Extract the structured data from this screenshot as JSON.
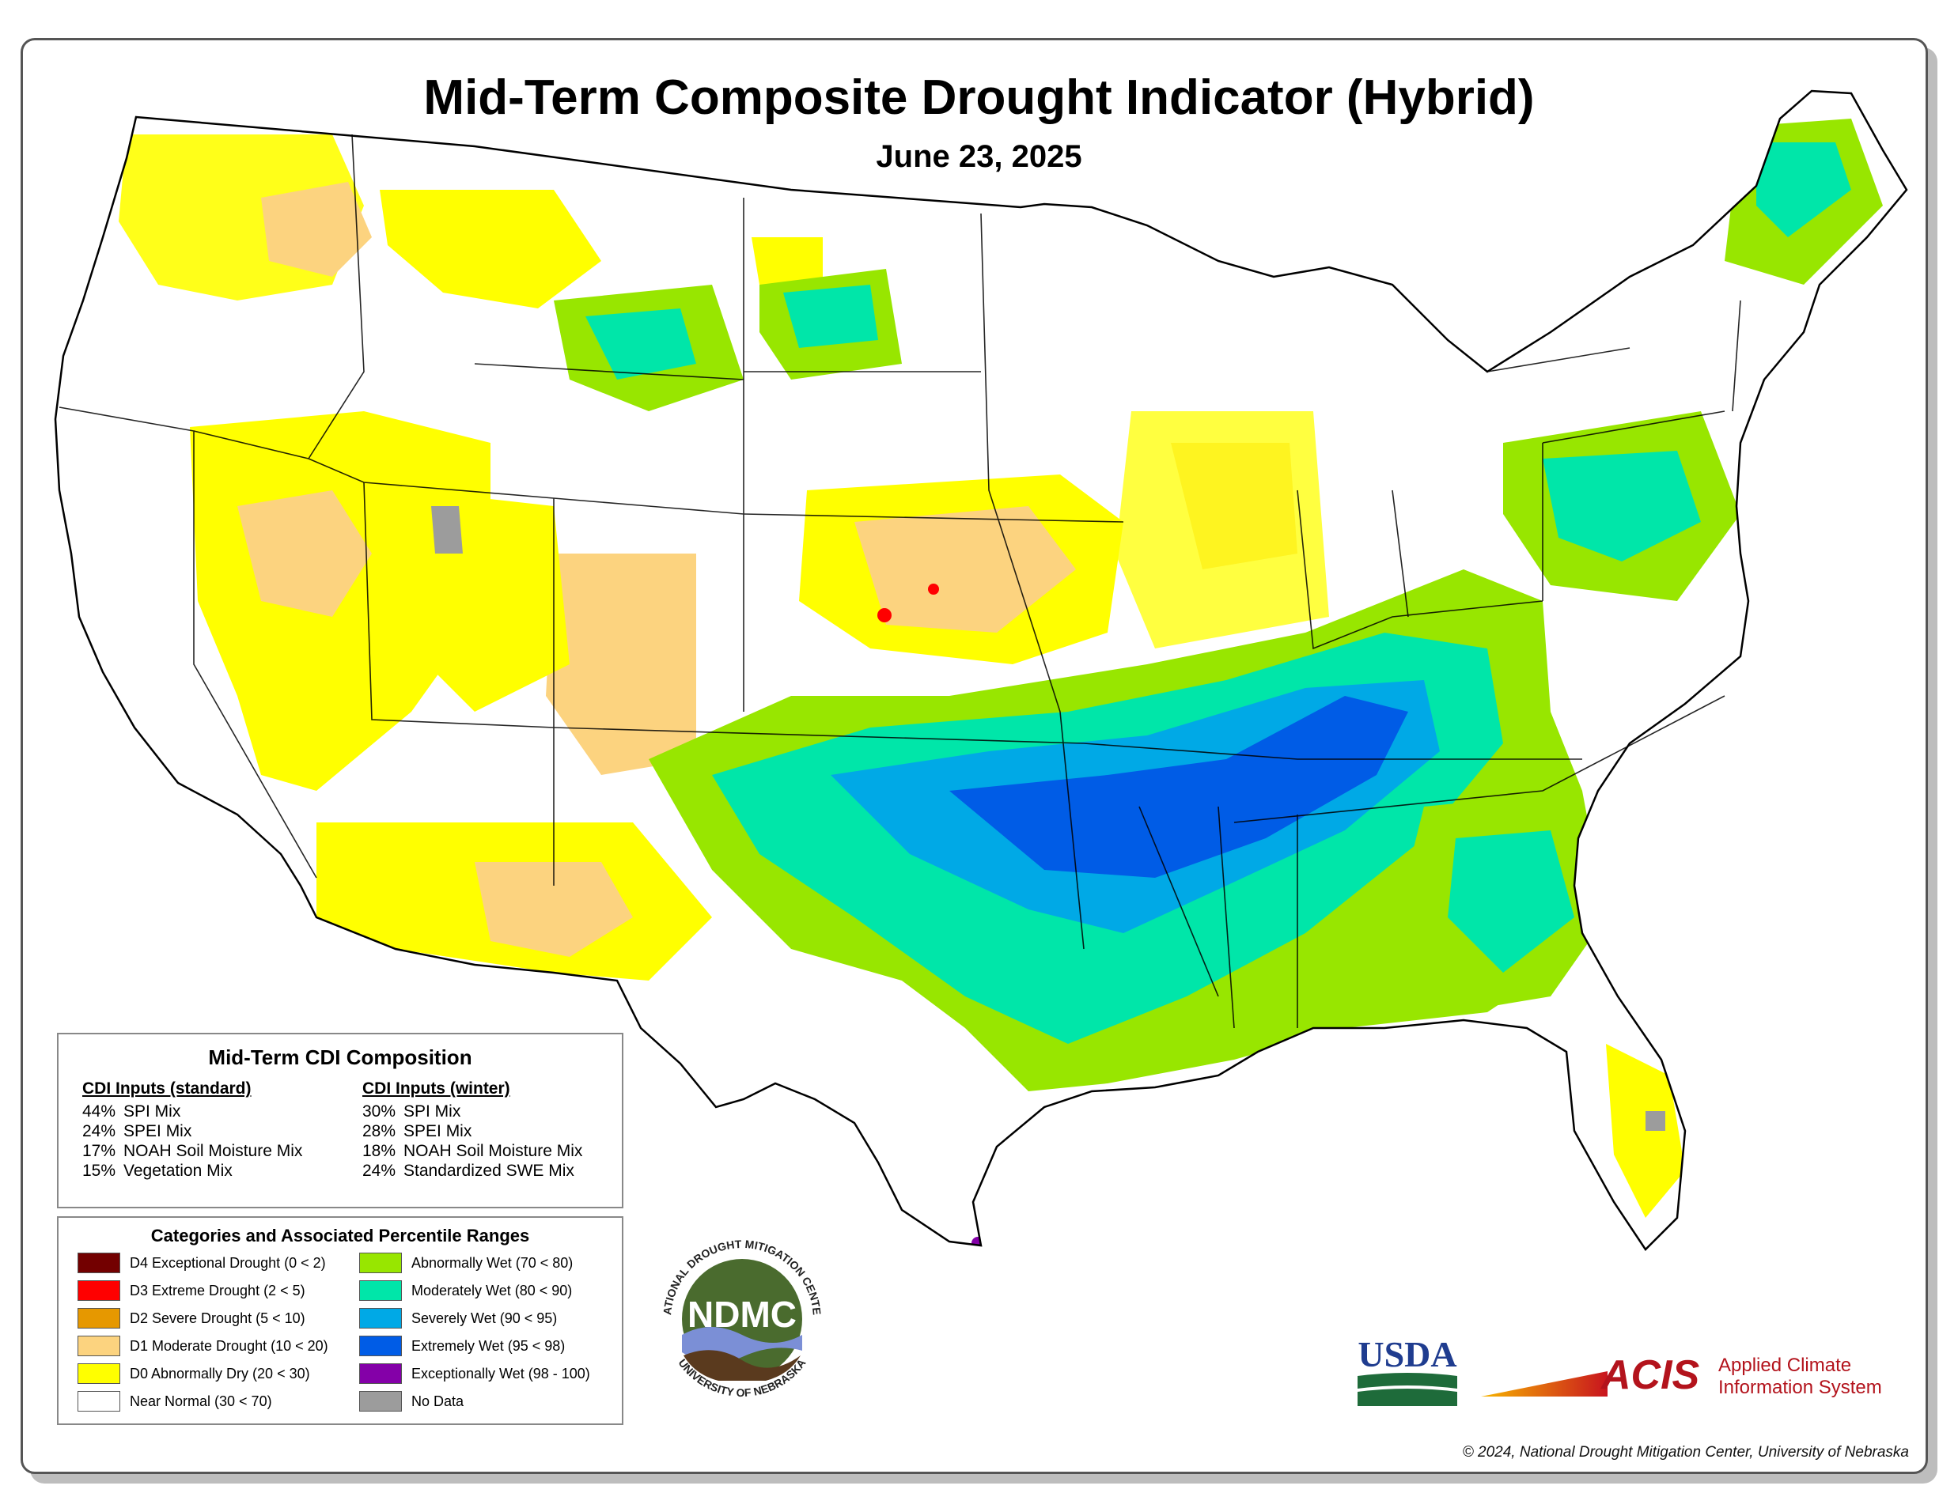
{
  "title": "Mid-Term Composite Drought Indicator (Hybrid)",
  "date": "June 23, 2025",
  "composition": {
    "heading": "Mid-Term CDI Composition",
    "standard": {
      "heading": "CDI Inputs (standard)",
      "rows": [
        {
          "pct": "44%",
          "name": "SPI Mix"
        },
        {
          "pct": "24%",
          "name": "SPEI Mix"
        },
        {
          "pct": "17%",
          "name": "NOAH Soil Moisture Mix"
        },
        {
          "pct": "15%",
          "name": "Vegetation Mix"
        }
      ]
    },
    "winter": {
      "heading": "CDI Inputs (winter)",
      "rows": [
        {
          "pct": "30%",
          "name": "SPI Mix"
        },
        {
          "pct": "28%",
          "name": "SPEI Mix"
        },
        {
          "pct": "18%",
          "name": "NOAH Soil Moisture Mix"
        },
        {
          "pct": "24%",
          "name": "Standardized SWE Mix"
        }
      ]
    }
  },
  "categories": {
    "heading": "Categories and Associated Percentile Ranges",
    "left": [
      {
        "label": "D4 Exceptional Drought (0 < 2)",
        "color": "#730000"
      },
      {
        "label": "D3 Extreme Drought (2 < 5)",
        "color": "#ff0000"
      },
      {
        "label": "D2 Severe Drought (5 < 10)",
        "color": "#e69800"
      },
      {
        "label": "D1 Moderate Drought (10 < 20)",
        "color": "#fcd37f"
      },
      {
        "label": "D0 Abnormally Dry (20 < 30)",
        "color": "#ffff00"
      },
      {
        "label": "Near Normal (30 < 70)",
        "color": "#ffffff"
      }
    ],
    "right": [
      {
        "label": "Abnormally Wet (70 < 80)",
        "color": "#98e600"
      },
      {
        "label": "Moderately Wet (80 < 90)",
        "color": "#00e6a9"
      },
      {
        "label": "Severely Wet (90 < 95)",
        "color": "#00a9e6"
      },
      {
        "label": "Extremely Wet (95 < 98)",
        "color": "#005ce6"
      },
      {
        "label": "Exceptionally Wet (98 - 100)",
        "color": "#8400a8"
      },
      {
        "label": "No Data",
        "color": "#9c9c9c"
      }
    ]
  },
  "logos": {
    "ndmc": {
      "center": "NDMC",
      "ring_top": "NATIONAL DROUGHT MITIGATION CENTER",
      "ring_bottom": "UNIVERSITY OF NEBRASKA"
    },
    "usda": "USDA",
    "acis": {
      "mark": "ACIS",
      "line1": "Applied Climate",
      "line2": "Information System"
    }
  },
  "copyright": "© 2024, National Drought Mitigation Center, University of Nebraska"
}
